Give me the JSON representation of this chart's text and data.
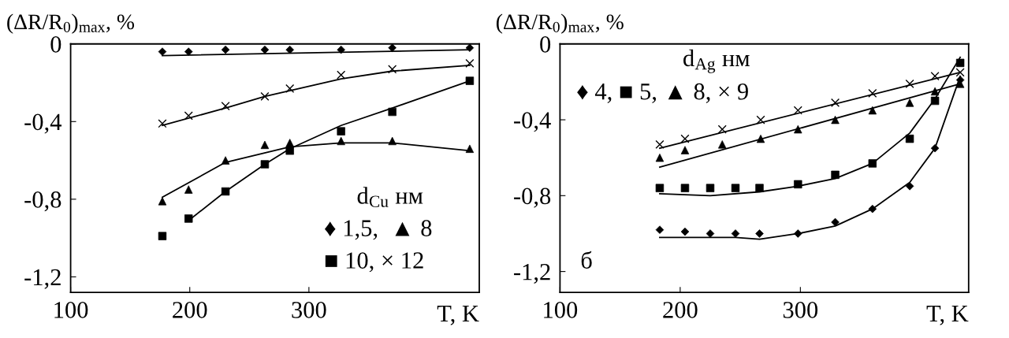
{
  "chart_data": [
    {
      "type": "scatter",
      "ylabel": "(ΔR/R$_{0}$)$_{max}$, %",
      "xlabel": "T, K",
      "xlim": [
        100,
        443
      ],
      "ylim": [
        -1.28,
        0.0
      ],
      "xticks": [
        100,
        200,
        300
      ],
      "yticks": [
        {
          "value": 0,
          "label": "0"
        },
        {
          "value": -0.4,
          "label": "-0,4"
        },
        {
          "value": -0.8,
          "label": "-0,8"
        },
        {
          "value": -1.2,
          "label": "-1,2"
        }
      ],
      "grid": false,
      "annotations": [
        "d$_{Cu}$ нм",
        "♦ 1,5,  ▲ 8",
        "■ 10, × 12"
      ],
      "series": [
        {
          "marker": "diamond",
          "color": "#000000",
          "x": [
            177,
            199,
            230,
            263,
            284,
            327,
            370,
            435
          ],
          "values": [
            -0.04,
            -0.04,
            -0.03,
            -0.03,
            -0.03,
            -0.03,
            -0.02,
            -0.02
          ]
        },
        {
          "marker": "cross",
          "color": "#000000",
          "x": [
            177,
            199,
            230,
            263,
            284,
            327,
            370,
            435
          ],
          "values": [
            -0.41,
            -0.37,
            -0.32,
            -0.27,
            -0.23,
            -0.16,
            -0.13,
            -0.1
          ]
        },
        {
          "marker": "square",
          "color": "#000000",
          "x": [
            177,
            199,
            230,
            263,
            284,
            327,
            370,
            435
          ],
          "values": [
            -0.99,
            -0.9,
            -0.76,
            -0.62,
            -0.55,
            -0.45,
            -0.35,
            -0.19
          ]
        },
        {
          "marker": "triangle",
          "color": "#000000",
          "x": [
            177,
            199,
            230,
            263,
            284,
            327,
            370,
            435
          ],
          "values": [
            -0.81,
            -0.75,
            -0.6,
            -0.52,
            -0.51,
            -0.5,
            -0.5,
            -0.54
          ]
        },
        {
          "type": "line",
          "color": "#000000",
          "x": [
            177,
            435
          ],
          "values": [
            -0.06,
            -0.03
          ]
        },
        {
          "type": "line",
          "color": "#000000",
          "x": [
            177,
            230,
            263,
            327,
            370,
            435
          ],
          "values": [
            -0.42,
            -0.33,
            -0.27,
            -0.18,
            -0.14,
            -0.11
          ]
        },
        {
          "type": "line",
          "color": "#000000",
          "x": [
            199,
            230,
            263,
            284,
            327,
            370,
            435
          ],
          "values": [
            -0.91,
            -0.76,
            -0.62,
            -0.54,
            -0.42,
            -0.33,
            -0.19
          ]
        },
        {
          "type": "line",
          "color": "#000000",
          "x": [
            177,
            230,
            284,
            327,
            370,
            435
          ],
          "values": [
            -0.79,
            -0.61,
            -0.53,
            -0.51,
            -0.51,
            -0.55
          ]
        }
      ]
    },
    {
      "type": "scatter",
      "ylabel": "(ΔR/R$_{0}$)$_{max}$, %",
      "xlabel": "T, K",
      "xlim": [
        100,
        440
      ],
      "ylim": [
        -1.31,
        0.0
      ],
      "xticks": [
        100,
        200,
        300
      ],
      "yticks": [
        {
          "value": 0,
          "label": "0"
        },
        {
          "value": -0.4,
          "label": "-0,4"
        },
        {
          "value": -0.8,
          "label": "-0,8"
        },
        {
          "value": -1.2,
          "label": "-1,2"
        }
      ],
      "grid": false,
      "annotations": [
        "d$_{Ag}$ нм",
        "♦ 4, ■ 5, ▲ 8, × 9",
        "б"
      ],
      "series": [
        {
          "marker": "diamond",
          "color": "#000000",
          "x": [
            183,
            204,
            225,
            246,
            266,
            298,
            329,
            360,
            391,
            412,
            433
          ],
          "values": [
            -0.98,
            -0.99,
            -1.0,
            -1.0,
            -1.0,
            -1.0,
            -0.94,
            -0.87,
            -0.75,
            -0.55,
            -0.19
          ]
        },
        {
          "marker": "square",
          "color": "#000000",
          "x": [
            183,
            204,
            225,
            246,
            266,
            298,
            329,
            360,
            391,
            412,
            433
          ],
          "values": [
            -0.76,
            -0.76,
            -0.76,
            -0.76,
            -0.76,
            -0.74,
            -0.69,
            -0.63,
            -0.5,
            -0.3,
            -0.1
          ]
        },
        {
          "marker": "triangle",
          "color": "#000000",
          "x": [
            183,
            204,
            235,
            267,
            298,
            329,
            360,
            391,
            412,
            433
          ],
          "values": [
            -0.6,
            -0.56,
            -0.53,
            -0.5,
            -0.45,
            -0.4,
            -0.35,
            -0.31,
            -0.25,
            -0.21
          ]
        },
        {
          "marker": "cross",
          "color": "#000000",
          "x": [
            183,
            204,
            235,
            267,
            298,
            329,
            360,
            391,
            412,
            433
          ],
          "values": [
            -0.53,
            -0.5,
            -0.45,
            -0.4,
            -0.35,
            -0.31,
            -0.26,
            -0.21,
            -0.17,
            -0.15
          ]
        },
        {
          "type": "line",
          "color": "#000000",
          "x": [
            183,
            246,
            266,
            298,
            329,
            360,
            391,
            412,
            433
          ],
          "values": [
            -1.02,
            -1.02,
            -1.03,
            -1.0,
            -0.96,
            -0.87,
            -0.73,
            -0.55,
            -0.17
          ]
        },
        {
          "type": "line",
          "color": "#000000",
          "x": [
            183,
            225,
            266,
            298,
            329,
            360,
            391,
            412,
            433
          ],
          "values": [
            -0.79,
            -0.8,
            -0.78,
            -0.75,
            -0.71,
            -0.63,
            -0.47,
            -0.29,
            -0.07
          ]
        },
        {
          "type": "line",
          "color": "#000000",
          "x": [
            183,
            433
          ],
          "values": [
            -0.65,
            -0.21
          ]
        },
        {
          "type": "line",
          "color": "#000000",
          "x": [
            183,
            433
          ],
          "values": [
            -0.55,
            -0.15
          ]
        }
      ]
    }
  ]
}
